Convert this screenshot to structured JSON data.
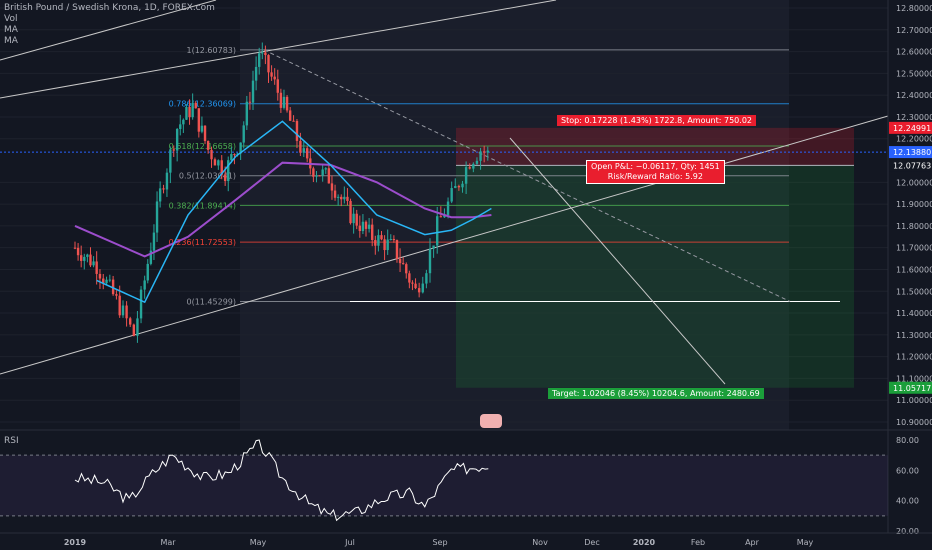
{
  "legend": {
    "symbol": "British Pound / Swedish Krona, 1D, FOREX.com",
    "vol": "Vol",
    "ma1": "MA",
    "ma2": "MA"
  },
  "rsi_label": "RSI",
  "position": {
    "stop_text": "Stop: 0.17228 (1.43%) 1722.8, Amount: 750.02",
    "target_text": "Target: 1.02046 (8.45%) 10204.6, Amount: 2480.69",
    "pnl_line1": "Open P&L: −0.06117, Qty: 1451",
    "pnl_line2": "Risk/Reward Ratio: 5.92"
  },
  "colors": {
    "background": "#131722",
    "up": "#26a69a",
    "down": "#ef5350",
    "ma_fast": "#29b6f6",
    "ma_slow": "#9c4dcc",
    "stop_zone": "#e91e2e",
    "target_zone": "#1b9e3a",
    "price_label": "#2962ff"
  },
  "chart_data": [
    {
      "type": "line",
      "title": "British Pound / Swedish Krona, 1D, FOREX.com",
      "x_ticks": [
        "2019",
        "Mar",
        "May",
        "Jul",
        "Sep",
        "Nov",
        "Dec",
        "2020",
        "Feb",
        "Apr",
        "May"
      ],
      "price_ticks": [
        12.8,
        12.7,
        12.6,
        12.5,
        12.4,
        12.3,
        12.2,
        12.0,
        11.9,
        11.8,
        11.7,
        11.6,
        11.5,
        11.4,
        11.3,
        11.2,
        11.1,
        11.0,
        10.9
      ],
      "price_tick_labels": [
        "12.80000",
        "12.70000",
        "12.60000",
        "12.50000",
        "12.40000",
        "12.30000",
        "12.20000",
        "12.00000",
        "11.90000",
        "11.80000",
        "11.70000",
        "11.60000",
        "11.50000",
        "11.40000",
        "11.30000",
        "11.20000",
        "11.10000",
        "11.00000",
        "10.90000"
      ],
      "ylim": [
        10.85,
        12.85
      ],
      "price_badges": [
        {
          "value": 12.24991,
          "label": "12.24991",
          "color": "#e91e2e"
        },
        {
          "value": 12.1388,
          "label": "12.13880",
          "color": "#2962ff"
        },
        {
          "value": 12.07763,
          "label": "12.07763",
          "color": "#131722"
        },
        {
          "value": 11.05717,
          "label": "11.05717",
          "color": "#1b9e3a"
        }
      ],
      "fib_levels": [
        {
          "ratio": "1",
          "value": 12.60783,
          "label": "1(12.60783)"
        },
        {
          "ratio": "0.786",
          "value": 12.36069,
          "label": "0.786(12.36069)"
        },
        {
          "ratio": "0.618",
          "value": 12.16658,
          "label": "0.618(12.16658)"
        },
        {
          "ratio": "0.5",
          "value": 12.03041,
          "label": "0.5(12.03041)"
        },
        {
          "ratio": "0.382",
          "value": 11.89414,
          "label": "0.382(11.89414)"
        },
        {
          "ratio": "0.236",
          "value": 11.72553,
          "label": "0.236(11.72553)"
        },
        {
          "ratio": "0",
          "value": 11.45299,
          "label": "0(11.45299)"
        }
      ],
      "close_series": [
        {
          "x": "2019-01-01",
          "y": 11.7
        },
        {
          "x": "2019-01-15",
          "y": 11.62
        },
        {
          "x": "2019-02-01",
          "y": 11.4
        },
        {
          "x": "2019-02-08",
          "y": 11.3
        },
        {
          "x": "2019-02-15",
          "y": 11.55
        },
        {
          "x": "2019-02-25",
          "y": 11.95
        },
        {
          "x": "2019-03-08",
          "y": 12.25
        },
        {
          "x": "2019-03-18",
          "y": 12.35
        },
        {
          "x": "2019-03-28",
          "y": 12.15
        },
        {
          "x": "2019-04-08",
          "y": 12.05
        },
        {
          "x": "2019-04-18",
          "y": 12.2
        },
        {
          "x": "2019-04-30",
          "y": 12.6
        },
        {
          "x": "2019-05-10",
          "y": 12.45
        },
        {
          "x": "2019-05-20",
          "y": 12.28
        },
        {
          "x": "2019-05-31",
          "y": 12.08
        },
        {
          "x": "2019-06-14",
          "y": 12.02
        },
        {
          "x": "2019-06-28",
          "y": 11.85
        },
        {
          "x": "2019-07-12",
          "y": 11.75
        },
        {
          "x": "2019-07-26",
          "y": 11.7
        },
        {
          "x": "2019-08-09",
          "y": 11.5
        },
        {
          "x": "2019-08-16",
          "y": 11.62
        },
        {
          "x": "2019-08-23",
          "y": 11.8
        },
        {
          "x": "2019-08-30",
          "y": 11.9
        },
        {
          "x": "2019-09-06",
          "y": 12.0
        },
        {
          "x": "2019-09-13",
          "y": 12.1
        },
        {
          "x": "2019-09-20",
          "y": 12.15
        },
        {
          "x": "2019-09-27",
          "y": 12.12
        }
      ],
      "ma_fast": [
        {
          "x": "2019-01-15",
          "y": 11.55
        },
        {
          "x": "2019-02-15",
          "y": 11.45
        },
        {
          "x": "2019-03-15",
          "y": 11.85
        },
        {
          "x": "2019-04-15",
          "y": 12.12
        },
        {
          "x": "2019-05-15",
          "y": 12.28
        },
        {
          "x": "2019-06-15",
          "y": 12.08
        },
        {
          "x": "2019-07-15",
          "y": 11.85
        },
        {
          "x": "2019-08-15",
          "y": 11.76
        },
        {
          "x": "2019-09-01",
          "y": 11.78
        },
        {
          "x": "2019-09-15",
          "y": 11.83
        },
        {
          "x": "2019-09-27",
          "y": 11.88
        }
      ],
      "ma_slow": [
        {
          "x": "2019-01-01",
          "y": 11.8
        },
        {
          "x": "2019-02-15",
          "y": 11.66
        },
        {
          "x": "2019-03-15",
          "y": 11.75
        },
        {
          "x": "2019-04-15",
          "y": 11.92
        },
        {
          "x": "2019-05-15",
          "y": 12.09
        },
        {
          "x": "2019-06-15",
          "y": 12.08
        },
        {
          "x": "2019-07-15",
          "y": 12.0
        },
        {
          "x": "2019-08-15",
          "y": 11.88
        },
        {
          "x": "2019-09-01",
          "y": 11.84
        },
        {
          "x": "2019-09-15",
          "y": 11.84
        },
        {
          "x": "2019-09-27",
          "y": 11.85
        }
      ]
    },
    {
      "type": "line",
      "title": "RSI",
      "yticks": [
        80,
        60,
        40,
        20
      ],
      "ytick_labels": [
        "80.00",
        "60.00",
        "40.00",
        "20.00"
      ],
      "ylim": [
        20,
        80
      ],
      "series": [
        {
          "name": "RSI",
          "values": [
            {
              "x": "2019-01-01",
              "y": 55
            },
            {
              "x": "2019-01-20",
              "y": 52
            },
            {
              "x": "2019-02-05",
              "y": 40
            },
            {
              "x": "2019-02-20",
              "y": 58
            },
            {
              "x": "2019-03-05",
              "y": 70
            },
            {
              "x": "2019-03-25",
              "y": 55
            },
            {
              "x": "2019-04-10",
              "y": 58
            },
            {
              "x": "2019-04-30",
              "y": 78
            },
            {
              "x": "2019-05-15",
              "y": 55
            },
            {
              "x": "2019-06-01",
              "y": 38
            },
            {
              "x": "2019-06-15",
              "y": 30
            },
            {
              "x": "2019-07-01",
              "y": 32
            },
            {
              "x": "2019-07-20",
              "y": 42
            },
            {
              "x": "2019-08-05",
              "y": 45
            },
            {
              "x": "2019-08-15",
              "y": 36
            },
            {
              "x": "2019-09-01",
              "y": 60
            },
            {
              "x": "2019-09-15",
              "y": 62
            },
            {
              "x": "2019-09-27",
              "y": 64
            }
          ]
        }
      ],
      "guides": [
        70,
        30
      ]
    }
  ]
}
